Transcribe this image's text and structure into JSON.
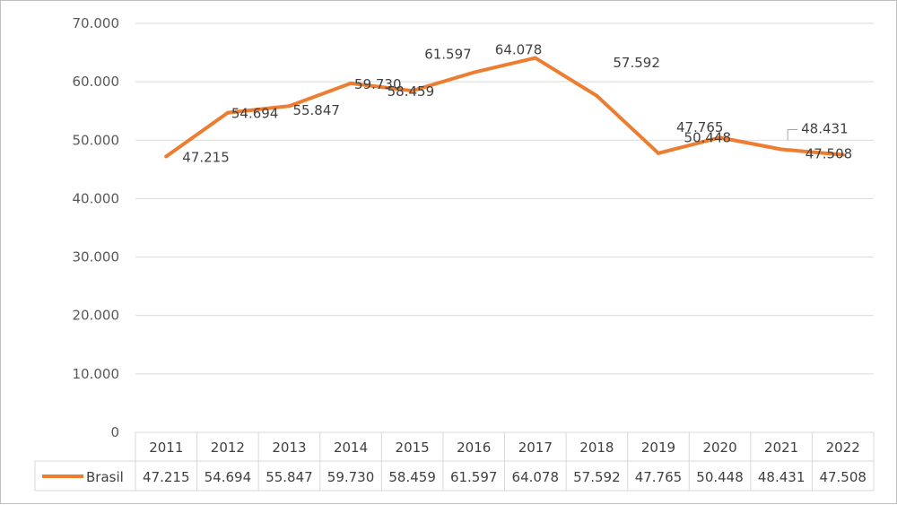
{
  "chart_data": {
    "type": "line",
    "categories": [
      "2011",
      "2012",
      "2013",
      "2014",
      "2015",
      "2016",
      "2017",
      "2018",
      "2019",
      "2020",
      "2021",
      "2022"
    ],
    "series": [
      {
        "name": "Brasil",
        "values": [
          47215,
          54694,
          55847,
          59730,
          58459,
          61597,
          64078,
          57592,
          47765,
          50448,
          48431,
          47508
        ],
        "labels": [
          "47.215",
          "54.694",
          "55.847",
          "59.730",
          "58.459",
          "61.597",
          "64.078",
          "57.592",
          "47.765",
          "50.448",
          "48.431",
          "47.508"
        ],
        "color": "#ED7D31"
      }
    ],
    "yticks": [
      "0",
      "10.000",
      "20.000",
      "30.000",
      "40.000",
      "50.000",
      "60.000",
      "70.000"
    ],
    "ylim": [
      0,
      70000
    ],
    "ystep": 10000,
    "grid": true,
    "legend": "data-table",
    "gridColor": "#d9d9d9",
    "textColor": "#595959"
  }
}
